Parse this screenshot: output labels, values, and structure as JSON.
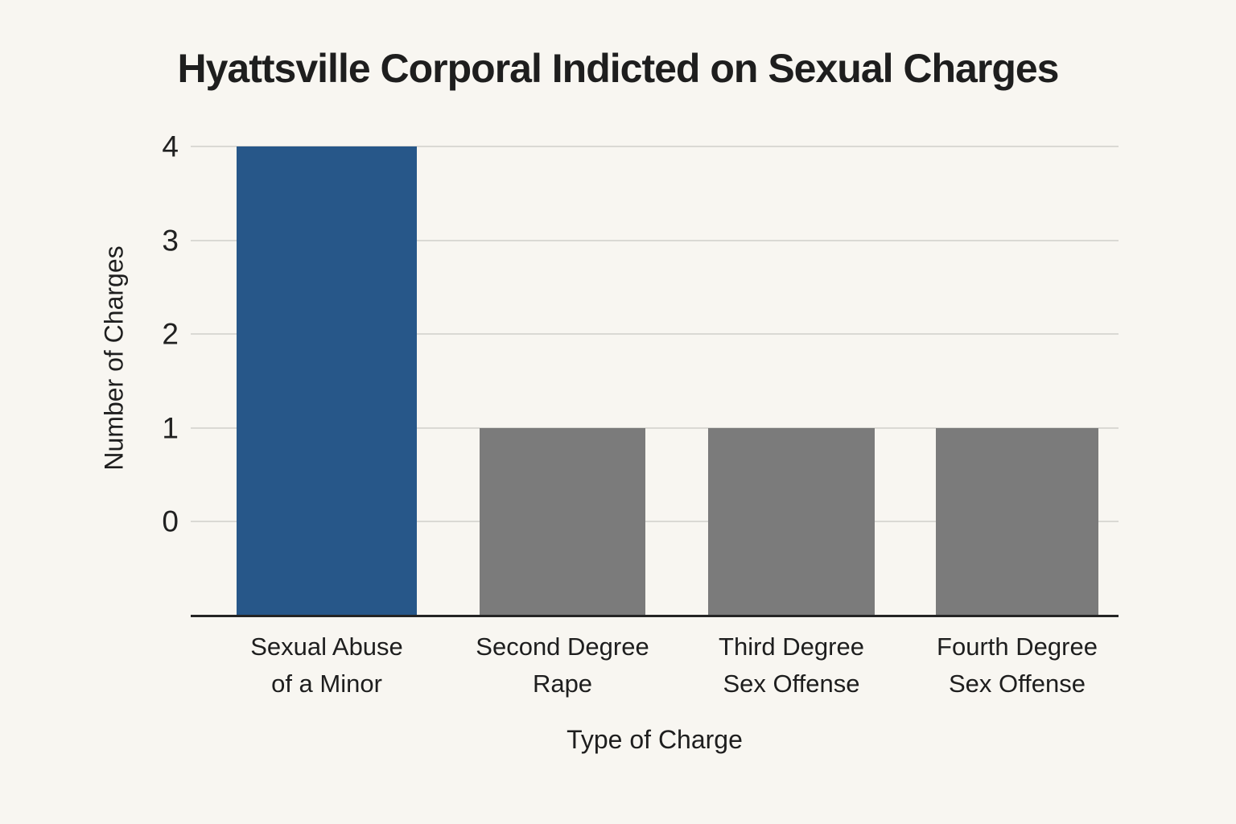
{
  "title": "Hyattsville Corporal Indicted on Sexual Charges",
  "chart_data": {
    "type": "bar",
    "title": "Hyattsville Corporal Indicted on Sexual Charges",
    "categories": [
      "Sexual Abuse of a Minor",
      "Second Degree Rape",
      "Third Degree Sex Offense",
      "Fourth Degree Sex Offense"
    ],
    "category_lines": [
      [
        "Sexual Abuse",
        "of a Minor"
      ],
      [
        "Second Degree",
        "Rape"
      ],
      [
        "Third Degree",
        "Sex Offense"
      ],
      [
        "Fourth Degree",
        "Sex Offense"
      ]
    ],
    "values": [
      4,
      1,
      1,
      1
    ],
    "bar_colors": [
      "#275789",
      "#7b7b7b",
      "#7b7b7b",
      "#7b7b7b"
    ],
    "xlabel": "Type of Charge",
    "ylabel": "Number of Charges",
    "yticks": [
      0,
      1,
      2,
      3,
      4
    ],
    "ylim": [
      -1,
      4
    ],
    "grid": true,
    "legend": false,
    "colors": {
      "background": "#f8f6f1",
      "gridline": "#dad9d4",
      "axis_line": "#242424",
      "text": "#1e1e1e",
      "highlight_bar": "#275789",
      "default_bar": "#7b7b7b"
    }
  }
}
